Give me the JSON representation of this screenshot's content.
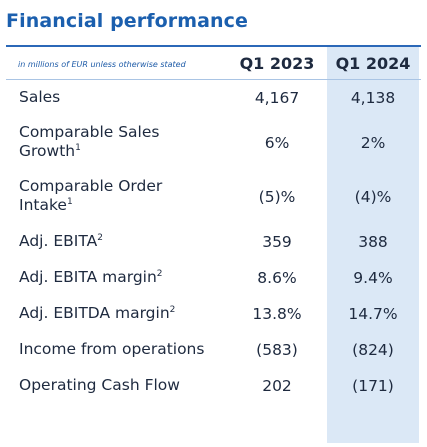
{
  "title": "Financial performance",
  "table": {
    "note": "in millions of EUR unless otherwise stated",
    "columns": [
      "Q1 2023",
      "Q1 2024"
    ],
    "rows": [
      {
        "label": "Sales",
        "sup": "",
        "values": [
          "4,167",
          "4,138"
        ]
      },
      {
        "label": "Comparable Sales Growth",
        "sup": "1",
        "values": [
          "6%",
          "2%"
        ]
      },
      {
        "label": "Comparable Order Intake",
        "sup": "1",
        "values": [
          "(5)%",
          "(4)%"
        ]
      },
      {
        "label": "Adj. EBITA",
        "sup": "2",
        "values": [
          "359",
          "388"
        ]
      },
      {
        "label": "Adj. EBITA margin",
        "sup": "2",
        "values": [
          "8.6%",
          "9.4%"
        ]
      },
      {
        "label": "Adj. EBITDA margin",
        "sup": "2",
        "values": [
          "13.8%",
          "14.7%"
        ]
      },
      {
        "label": "Income from operations",
        "sup": "",
        "values": [
          "(583)",
          "(824)"
        ]
      },
      {
        "label": "Operating Cash Flow",
        "sup": "",
        "values": [
          "202",
          "(171)"
        ]
      }
    ]
  },
  "colors": {
    "title": "#1b5fae",
    "header_rule": "#2b68b8",
    "highlight_column": "#dbe8f6",
    "text": "#1e2a3f"
  }
}
